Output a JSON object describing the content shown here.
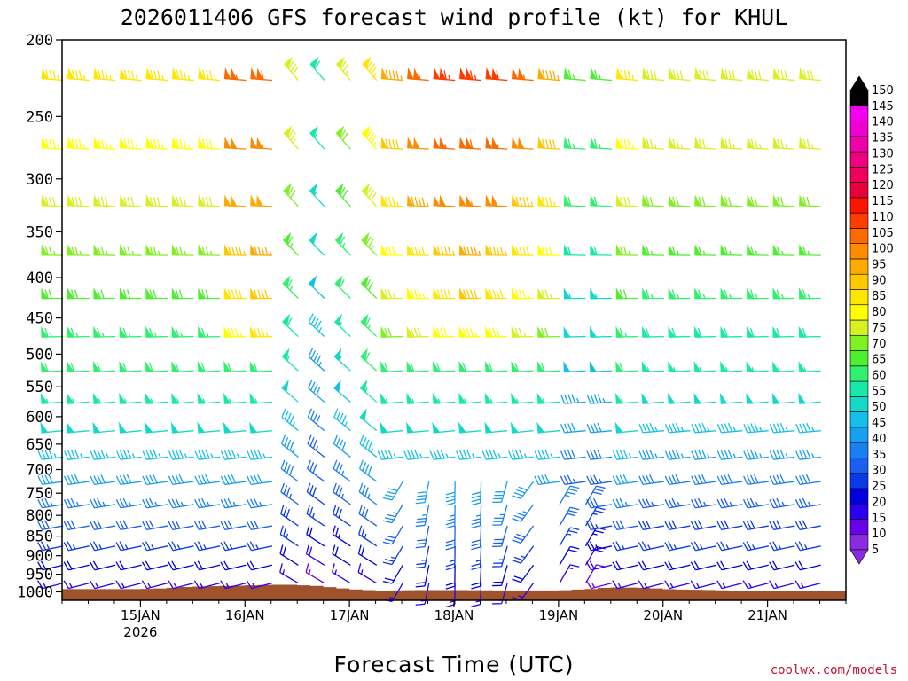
{
  "chart_data": {
    "type": "wind-barb-time-height",
    "title": "2026011406 GFS forecast wind profile (kt) for KHUL",
    "xlabel": "Forecast Time (UTC)",
    "ylabel": "",
    "y_ticks": [
      200,
      250,
      300,
      350,
      400,
      450,
      500,
      550,
      600,
      650,
      700,
      750,
      800,
      850,
      900,
      950,
      1000
    ],
    "ylim": [
      1025,
      200
    ],
    "x_ticks": [
      {
        "day": 1,
        "label": "15JAN",
        "sublabel": "2026"
      },
      {
        "day": 2,
        "label": "16JAN",
        "sublabel": ""
      },
      {
        "day": 3,
        "label": "17JAN",
        "sublabel": ""
      },
      {
        "day": 4,
        "label": "18JAN",
        "sublabel": ""
      },
      {
        "day": 5,
        "label": "19JAN",
        "sublabel": ""
      },
      {
        "day": 6,
        "label": "20JAN",
        "sublabel": ""
      },
      {
        "day": 7,
        "label": "21JAN",
        "sublabel": ""
      }
    ],
    "xlim_days": [
      0.25,
      7.75
    ],
    "time_step_hours": 6,
    "barb_levels": [
      225,
      275,
      325,
      375,
      425,
      475,
      525,
      575,
      625,
      675,
      725,
      775,
      825,
      875,
      925,
      975,
      1000
    ],
    "colorbar": {
      "levels": [
        5,
        10,
        15,
        20,
        25,
        30,
        35,
        40,
        45,
        50,
        55,
        60,
        65,
        70,
        75,
        80,
        85,
        90,
        95,
        100,
        105,
        110,
        115,
        120,
        125,
        130,
        135,
        140,
        145,
        150
      ],
      "colors": [
        "#8a2be2",
        "#6a00e8",
        "#2b00f0",
        "#0000dd",
        "#0a3ae8",
        "#1a60f0",
        "#1a80f0",
        "#18a0f0",
        "#14c0e8",
        "#14d8c8",
        "#18e8a8",
        "#30f070",
        "#50ee30",
        "#80f020",
        "#d8f020",
        "#ffff00",
        "#ffe600",
        "#ffc800",
        "#ffaa00",
        "#ff8c00",
        "#ff6a00",
        "#ff3c00",
        "#ff1400",
        "#e8003a",
        "#f0005a",
        "#f00080",
        "#f000a8",
        "#f000d0",
        "#f000ee",
        "#000000"
      ]
    },
    "surface_pressure_hpa": [
      {
        "day": 0.25,
        "p": 992
      },
      {
        "day": 1.0,
        "p": 992
      },
      {
        "day": 1.2,
        "p": 990
      },
      {
        "day": 1.5,
        "p": 985
      },
      {
        "day": 1.8,
        "p": 983
      },
      {
        "day": 2.1,
        "p": 981
      },
      {
        "day": 2.4,
        "p": 979
      },
      {
        "day": 2.7,
        "p": 983
      },
      {
        "day": 3.0,
        "p": 992
      },
      {
        "day": 3.3,
        "p": 997
      },
      {
        "day": 3.6,
        "p": 995
      },
      {
        "day": 4.0,
        "p": 995
      },
      {
        "day": 4.5,
        "p": 996
      },
      {
        "day": 5.0,
        "p": 996
      },
      {
        "day": 5.3,
        "p": 992
      },
      {
        "day": 5.5,
        "p": 987
      },
      {
        "day": 5.8,
        "p": 988
      },
      {
        "day": 6.1,
        "p": 993
      },
      {
        "day": 6.5,
        "p": 995
      },
      {
        "day": 6.9,
        "p": 998
      },
      {
        "day": 7.2,
        "p": 999
      },
      {
        "day": 7.5,
        "p": 998
      },
      {
        "day": 7.75,
        "p": 997
      }
    ],
    "ground_color": "#a0522d",
    "credit": "coolwx.com/models"
  }
}
